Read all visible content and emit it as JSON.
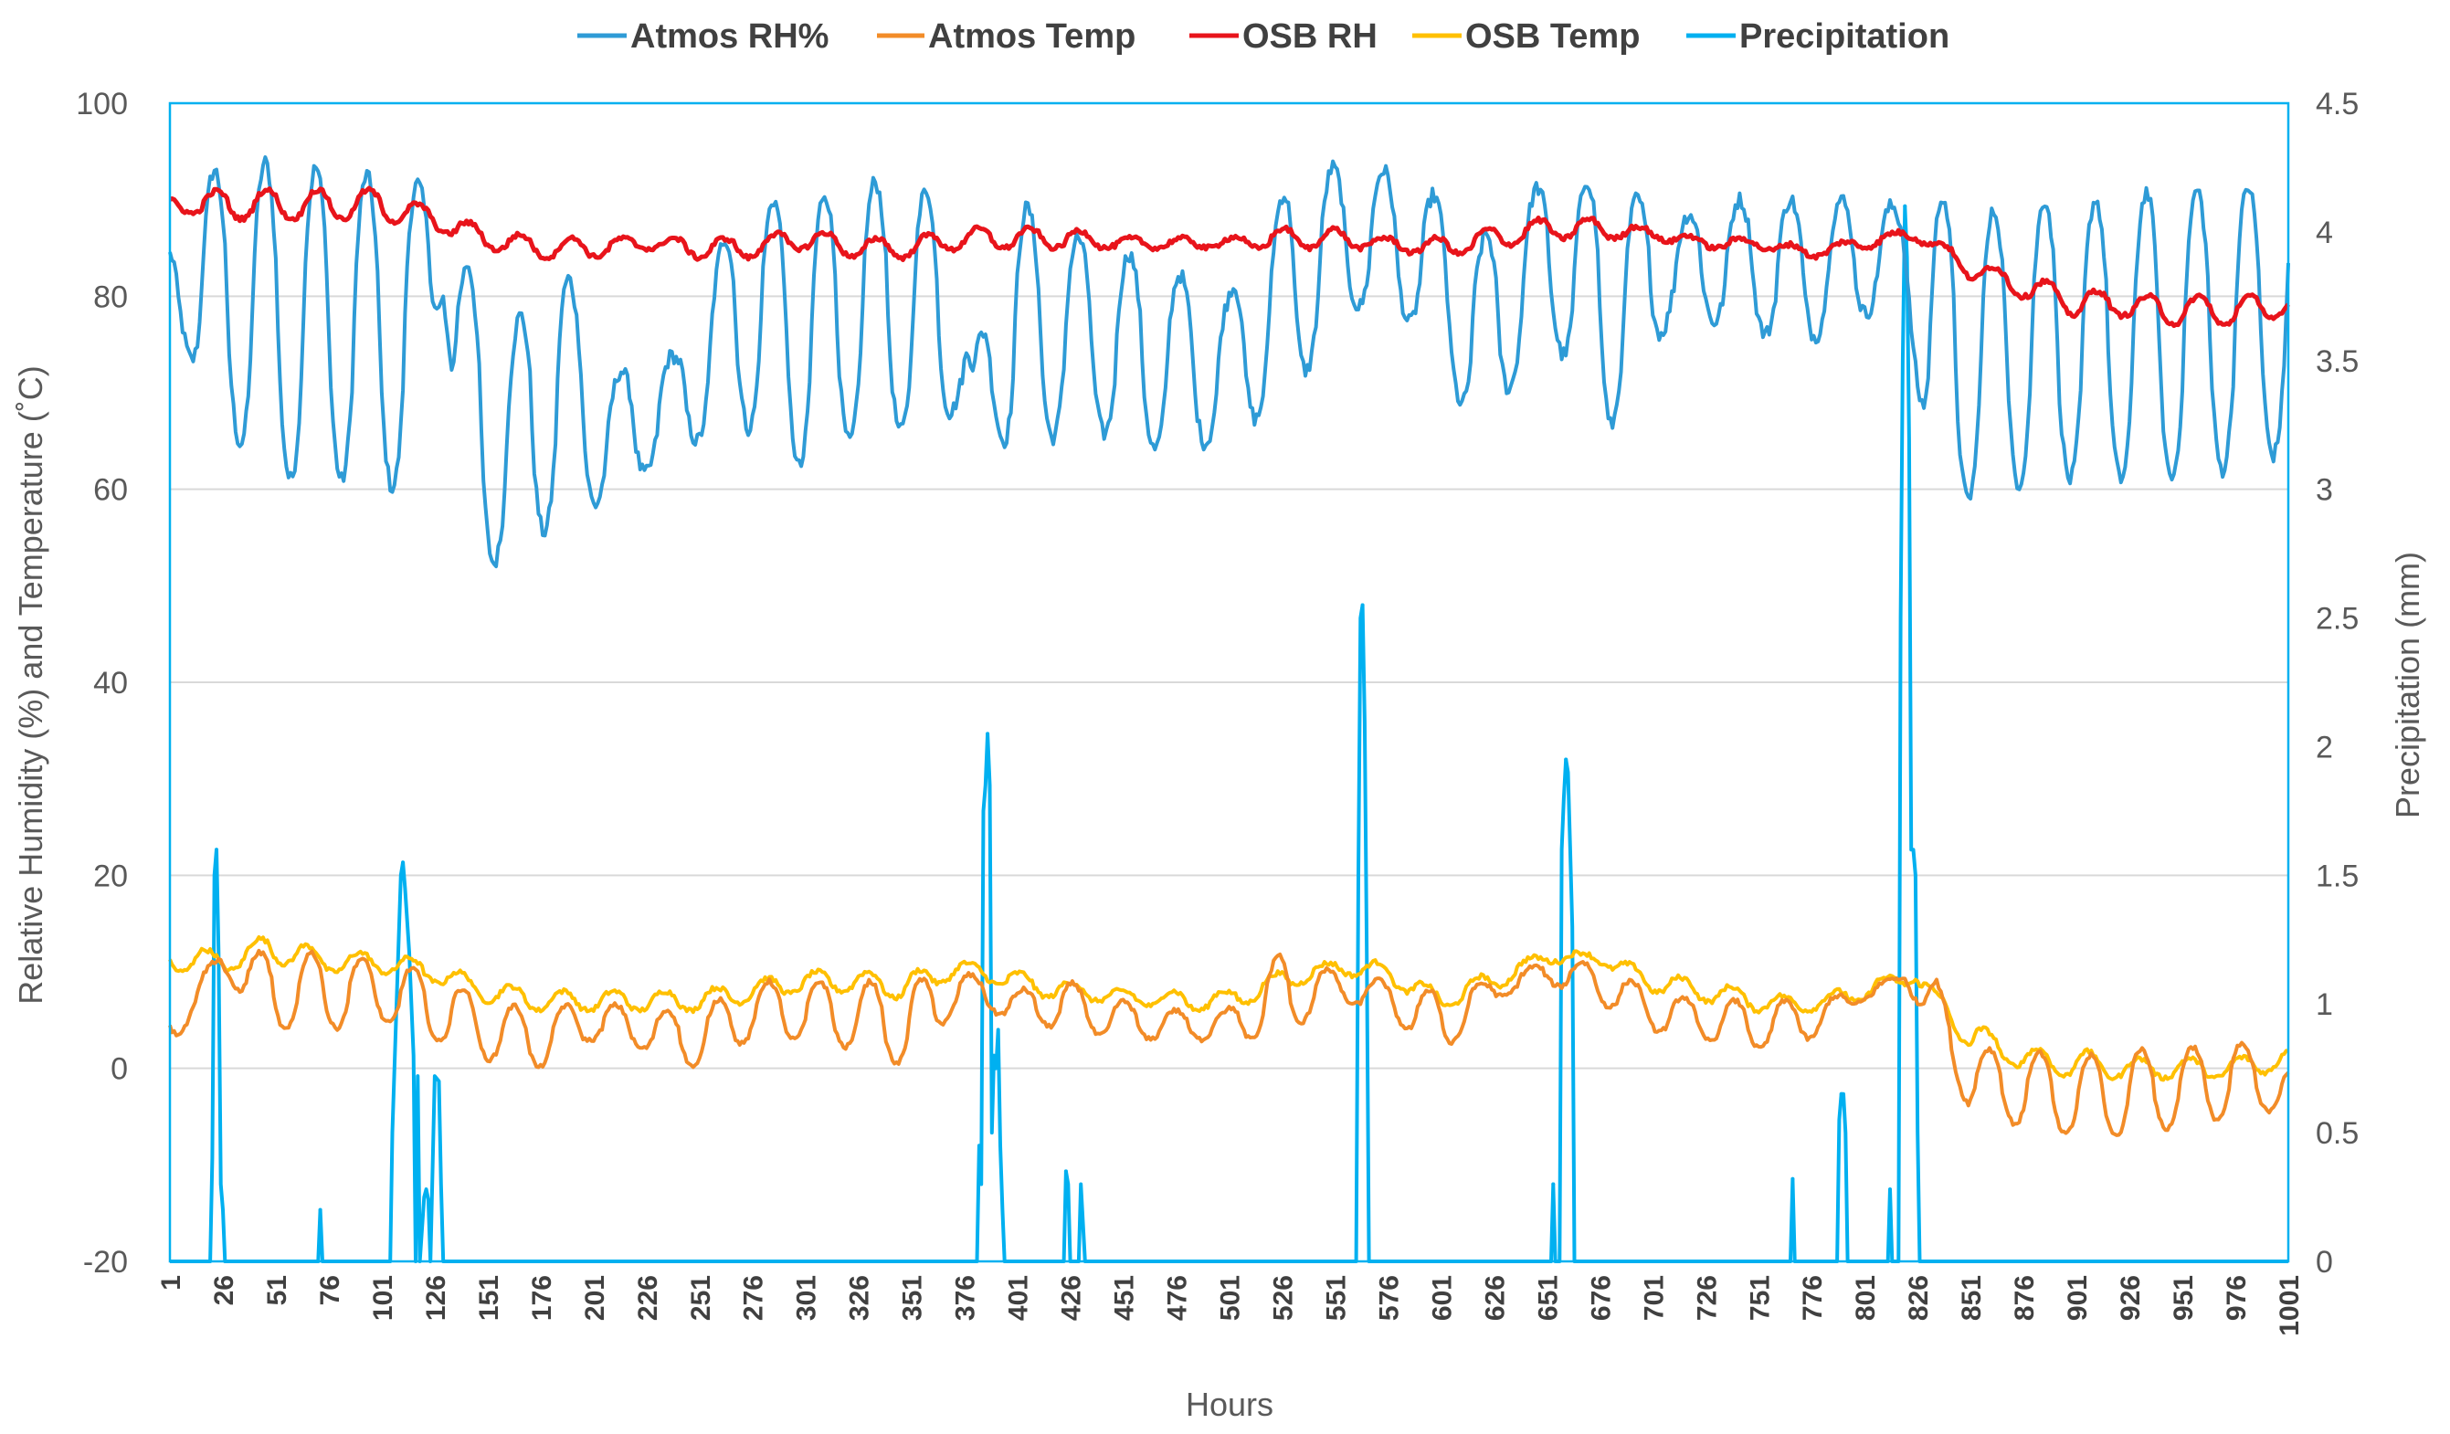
{
  "chart_data": {
    "type": "line",
    "title": "",
    "xlabel": "Hours",
    "ylabel_left": "Relative Humidity (%) and Temperature (˚C)",
    "ylabel_right": "Precipitation (mm)",
    "x_range": [
      1,
      1001
    ],
    "ylim_left": [
      -20,
      100
    ],
    "ylim_right": [
      0,
      4.5
    ],
    "left_ticks": [
      -20,
      0,
      20,
      40,
      60,
      80,
      100
    ],
    "right_ticks": [
      "0",
      "0.5",
      "1",
      "1.5",
      "2",
      "2.5",
      "3",
      "3.5",
      "4",
      "4.5"
    ],
    "x_ticks": [
      "1",
      "26",
      "51",
      "76",
      "101",
      "126",
      "151",
      "176",
      "201",
      "226",
      "251",
      "276",
      "301",
      "326",
      "351",
      "376",
      "401",
      "426",
      "451",
      "476",
      "501",
      "526",
      "551",
      "576",
      "601",
      "626",
      "651",
      "676",
      "701",
      "726",
      "751",
      "776",
      "801",
      "826",
      "851",
      "876",
      "901",
      "926",
      "951",
      "976",
      "1001"
    ],
    "grid": "horizontal",
    "legend_position": "top",
    "series": [
      {
        "name": "Atmos RH%",
        "axis": "left",
        "color": "#2E9BD6",
        "diurnal": true,
        "x": [
          1,
          20,
          50,
          80,
          110,
          130,
          140,
          160,
          185,
          210,
          240,
          270,
          300,
          330,
          360,
          380,
          400,
          430,
          460,
          500,
          530,
          560,
          590,
          620,
          650,
          680,
          710,
          740,
          770,
          800,
          820,
          835,
          850,
          880,
          910,
          940,
          970,
          1001
        ],
        "high": [
          85,
          93,
          94,
          93,
          92,
          91,
          84,
          76,
          84,
          72,
          74,
          90,
          90,
          92,
          91,
          73,
          90,
          86,
          84,
          80,
          92,
          94,
          92,
          86,
          92,
          92,
          88,
          90,
          90,
          90,
          89,
          91,
          88,
          90,
          90,
          91,
          91,
          92
        ],
        "low": [
          79,
          68,
          61,
          61,
          60,
          80,
          53,
          52,
          57,
          59,
          64,
          67,
          62,
          66,
          66,
          70,
          63,
          67,
          64,
          65,
          70,
          79,
          77,
          65,
          77,
          66,
          78,
          77,
          75,
          78,
          80,
          57,
          59,
          61,
          61,
          61,
          62,
          64
        ]
      },
      {
        "name": "Atmos Temp",
        "axis": "left",
        "color": "#F28C28",
        "diurnal": true,
        "x": [
          1,
          25,
          50,
          75,
          100,
          125,
          150,
          175,
          200,
          225,
          250,
          275,
          300,
          325,
          350,
          375,
          400,
          425,
          450,
          475,
          500,
          525,
          550,
          575,
          600,
          625,
          650,
          675,
          700,
          725,
          750,
          775,
          800,
          820,
          835,
          850,
          875,
          900,
          925,
          950,
          975,
          1001
        ],
        "high": [
          6,
          12,
          12,
          12,
          11,
          10,
          7,
          6,
          7,
          6,
          6,
          9,
          9,
          9,
          9,
          10,
          8,
          9,
          7,
          6,
          6,
          12,
          10,
          9,
          8,
          9,
          11,
          11,
          8,
          7,
          7,
          7,
          8,
          10,
          9,
          2,
          2,
          1,
          2,
          2,
          3,
          0
        ],
        "low": [
          2,
          10,
          4,
          4,
          5,
          3,
          1,
          0,
          3,
          2,
          0,
          3,
          3,
          2,
          0,
          7,
          5,
          4,
          3,
          3,
          3,
          3,
          7,
          6,
          1,
          7,
          9,
          7,
          4,
          3,
          2,
          3,
          7,
          9,
          3,
          -4,
          -6,
          -7,
          -7,
          -6,
          -5,
          -4
        ]
      },
      {
        "name": "OSB RH",
        "axis": "left",
        "color": "#E8141B",
        "diurnal": true,
        "x": [
          1,
          25,
          50,
          75,
          100,
          125,
          150,
          175,
          200,
          225,
          250,
          275,
          300,
          325,
          350,
          375,
          400,
          425,
          450,
          475,
          500,
          525,
          550,
          575,
          600,
          625,
          650,
          675,
          700,
          725,
          750,
          775,
          800,
          825,
          850,
          875,
          900,
          925,
          950,
          975,
          1001
        ],
        "high": [
          90,
          91,
          91,
          91,
          91,
          89,
          87,
          86,
          86,
          86,
          86,
          86,
          87,
          86,
          86,
          87,
          87,
          87,
          86,
          86,
          86,
          87,
          87,
          86,
          86,
          87,
          88,
          88,
          87,
          86,
          86,
          85,
          86,
          87,
          84,
          82,
          81,
          80,
          80,
          80,
          80
        ],
        "low": [
          89,
          88,
          88,
          88,
          88,
          87,
          85,
          84,
          84,
          85,
          84,
          84,
          85,
          84,
          84,
          85,
          85,
          85,
          85,
          85,
          85,
          85,
          85,
          85,
          84,
          85,
          86,
          86,
          86,
          85,
          85,
          84,
          85,
          86,
          82,
          80,
          78,
          78,
          77,
          77,
          78
        ]
      },
      {
        "name": "OSB Temp",
        "axis": "left",
        "color": "#FFC000",
        "diurnal": true,
        "x": [
          1,
          25,
          50,
          75,
          100,
          125,
          150,
          175,
          200,
          225,
          250,
          275,
          300,
          325,
          350,
          375,
          400,
          425,
          450,
          475,
          500,
          525,
          550,
          575,
          600,
          625,
          650,
          675,
          700,
          725,
          750,
          775,
          800,
          825,
          850,
          875,
          900,
          925,
          950,
          975,
          1001
        ],
        "high": [
          13,
          12,
          14,
          12,
          12,
          11,
          9,
          8,
          8,
          8,
          8,
          9,
          10,
          10,
          10,
          11,
          10,
          9,
          8,
          8,
          8,
          10,
          11,
          11,
          8,
          10,
          12,
          12,
          10,
          9,
          8,
          7,
          9,
          10,
          5,
          2,
          2,
          1,
          1,
          1,
          2
        ],
        "low": [
          10,
          10,
          11,
          10,
          10,
          9,
          7,
          6,
          6,
          6,
          6,
          7,
          8,
          8,
          7,
          10,
          8,
          7,
          7,
          6,
          6,
          8,
          10,
          9,
          6,
          8,
          11,
          11,
          8,
          7,
          6,
          6,
          7,
          9,
          2,
          0,
          -1,
          -1,
          -1,
          -1,
          0
        ]
      },
      {
        "name": "Precipitation",
        "axis": "right",
        "color": "#00B0F0",
        "diurnal": false,
        "baseline": 0,
        "events": [
          {
            "start": 20,
            "end": 27,
            "points": [
              [
                20,
                0
              ],
              [
                21,
                0.4
              ],
              [
                22,
                1.5
              ],
              [
                23,
                1.6
              ],
              [
                24,
                1.2
              ],
              [
                25,
                0.3
              ],
              [
                26,
                0.2
              ],
              [
                27,
                0
              ]
            ]
          },
          {
            "start": 71,
            "end": 73,
            "points": [
              [
                71,
                0
              ],
              [
                72,
                0.2
              ],
              [
                73,
                0
              ]
            ]
          },
          {
            "start": 105,
            "end": 133,
            "points": [
              [
                105,
                0
              ],
              [
                106,
                0.5
              ],
              [
                108,
                1.0
              ],
              [
                110,
                1.5
              ],
              [
                111,
                1.55
              ],
              [
                112,
                1.45
              ],
              [
                114,
                1.2
              ],
              [
                116,
                0.8
              ],
              [
                117,
                0
              ],
              [
                118,
                0.72
              ],
              [
                119,
                0
              ],
              [
                121,
                0.25
              ],
              [
                122,
                0.28
              ],
              [
                123,
                0.24
              ],
              [
                124,
                0
              ],
              [
                126,
                0.72
              ],
              [
                128,
                0.7
              ],
              [
                129,
                0.3
              ],
              [
                130,
                0
              ]
            ]
          },
          {
            "start": 382,
            "end": 396,
            "points": [
              [
                382,
                0
              ],
              [
                383,
                0.45
              ],
              [
                384,
                0.3
              ],
              [
                385,
                1.75
              ],
              [
                386,
                1.85
              ],
              [
                387,
                2.05
              ],
              [
                388,
                1.85
              ],
              [
                389,
                0.5
              ],
              [
                390,
                0.8
              ],
              [
                391,
                0.75
              ],
              [
                392,
                0.9
              ],
              [
                393,
                0.45
              ],
              [
                394,
                0.2
              ],
              [
                395,
                0
              ]
            ]
          },
          {
            "start": 423,
            "end": 434,
            "points": [
              [
                423,
                0
              ],
              [
                424,
                0.35
              ],
              [
                425,
                0.3
              ],
              [
                426,
                0
              ],
              [
                430,
                0
              ],
              [
                431,
                0.3
              ],
              [
                432,
                0.15
              ],
              [
                433,
                0
              ]
            ]
          },
          {
            "start": 561,
            "end": 569,
            "points": [
              [
                561,
                0
              ],
              [
                562,
                1.5
              ],
              [
                563,
                2.5
              ],
              [
                564,
                2.55
              ],
              [
                565,
                2.1
              ],
              [
                566,
                1.2
              ],
              [
                567,
                0
              ]
            ]
          },
          {
            "start": 653,
            "end": 657,
            "points": [
              [
                653,
                0
              ],
              [
                654,
                0.3
              ],
              [
                655,
                0
              ]
            ]
          },
          {
            "start": 657,
            "end": 665,
            "points": [
              [
                657,
                0
              ],
              [
                658,
                1.6
              ],
              [
                659,
                1.8
              ],
              [
                660,
                1.95
              ],
              [
                661,
                1.9
              ],
              [
                662,
                1.6
              ],
              [
                663,
                1.3
              ],
              [
                664,
                0
              ]
            ]
          },
          {
            "start": 766,
            "end": 769,
            "points": [
              [
                766,
                0
              ],
              [
                767,
                0.32
              ],
              [
                768,
                0
              ]
            ]
          },
          {
            "start": 788,
            "end": 794,
            "points": [
              [
                788,
                0
              ],
              [
                789,
                0.55
              ],
              [
                790,
                0.65
              ],
              [
                791,
                0.65
              ],
              [
                792,
                0.5
              ],
              [
                793,
                0
              ]
            ]
          },
          {
            "start": 812,
            "end": 814,
            "points": [
              [
                812,
                0
              ],
              [
                813,
                0.28
              ],
              [
                814,
                0
              ]
            ]
          },
          {
            "start": 817,
            "end": 829,
            "points": [
              [
                817,
                0
              ],
              [
                818,
                2.5
              ],
              [
                819,
                3.5
              ],
              [
                820,
                4.1
              ],
              [
                821,
                3.9
              ],
              [
                822,
                3.2
              ],
              [
                823,
                1.6
              ],
              [
                824,
                1.6
              ],
              [
                825,
                1.5
              ],
              [
                826,
                0.5
              ],
              [
                827,
                0
              ]
            ]
          }
        ]
      }
    ]
  }
}
